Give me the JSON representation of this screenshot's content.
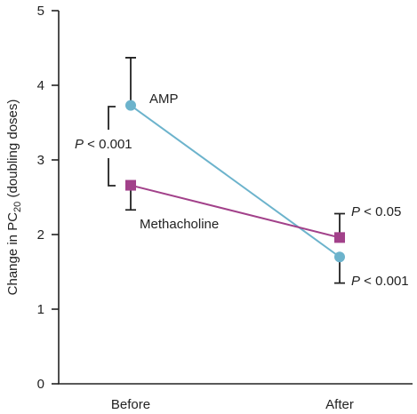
{
  "chart_data": {
    "type": "line",
    "categories": [
      "Before",
      "After"
    ],
    "ylabel_main": "Change in PC",
    "ylabel_sub": "20",
    "ylabel_tail": " (doubling doses)",
    "ylim": [
      0,
      5
    ],
    "yticks": [
      "0",
      "1",
      "2",
      "3",
      "4",
      "5"
    ],
    "series": [
      {
        "name": "AMP",
        "values": [
          3.73,
          1.7
        ],
        "error_upper": [
          4.37,
          null
        ],
        "error_lower": [
          null,
          1.35
        ],
        "color": "#6cb3cc",
        "marker": "circle"
      },
      {
        "name": "Methacholine",
        "values": [
          2.66,
          1.96
        ],
        "error_upper": [
          null,
          2.28
        ],
        "error_lower": [
          2.33,
          null
        ],
        "color": "#a2418a",
        "marker": "square"
      }
    ],
    "annotations": [
      {
        "italic": "P",
        "rest": " < 0.001",
        "where": "before-bracket"
      },
      {
        "italic": "P",
        "rest": " < 0.05",
        "where": "after-upper"
      },
      {
        "italic": "P",
        "rest": " < 0.001",
        "where": "after-lower"
      }
    ]
  }
}
